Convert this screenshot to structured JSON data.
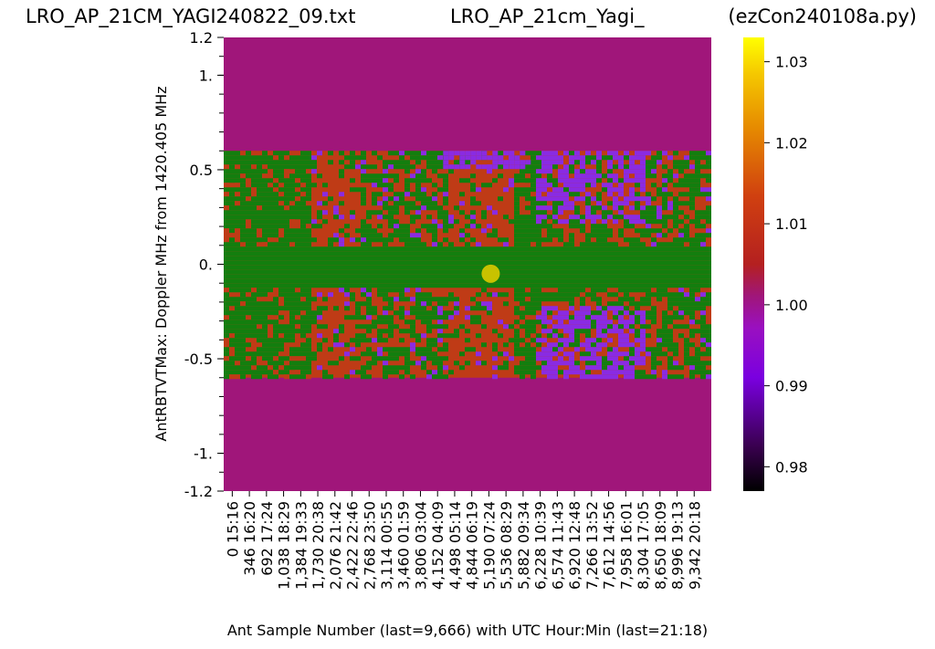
{
  "titles": {
    "left": "LRO_AP_21CM_YAGI240822_09.txt",
    "center": "LRO_AP_21cm_Yagi_",
    "right": "(ezCon240108a.py)"
  },
  "chart_data": {
    "type": "heatmap",
    "title": "LRO_AP_21cm_Yagi_",
    "xlabel": "Ant Sample Number (last=9,666) with UTC Hour:Min (last=21:18)",
    "ylabel": "AntRBTVTMax:  Doppler MHz from 1420.405 MHz",
    "ylim": [
      -1.2,
      1.2
    ],
    "y_ticks": [
      {
        "value": 1.2,
        "label": "1.2"
      },
      {
        "value": 1.0,
        "label": "1."
      },
      {
        "value": 0.5,
        "label": "0.5"
      },
      {
        "value": 0.0,
        "label": "0."
      },
      {
        "value": -0.5,
        "label": "-0.5"
      },
      {
        "value": -1.0,
        "label": "-1."
      },
      {
        "value": -1.2,
        "label": "-1.2"
      }
    ],
    "x_tick_labels": [
      "0  15:16",
      "346  16:20",
      "692  17:24",
      "1,038  18:29",
      "1,384  19:33",
      "1,730  20:38",
      "2,076  21:42",
      "2,422  22:46",
      "2,768  23:50",
      "3,114  00:55",
      "3,460  01:59",
      "3,806  03:04",
      "4,152  04:09",
      "4,498  05:14",
      "4,844  06:19",
      "5,190  07:24",
      "5,536  08:29",
      "5,882  09:34",
      "6,228  10:39",
      "6,574  11:43",
      "6,920  12:48",
      "7,266  13:52",
      "7,612  14:56",
      "7,958  16:01",
      "8,304  17:05",
      "8,650  18:09",
      "8,996  19:13",
      "9,342  20:18"
    ],
    "x_last_sample": 9666,
    "data_band_y_range": [
      -0.6,
      0.6
    ],
    "marker": {
      "sample": 5190,
      "doppler": -0.05,
      "color": "#c8c200"
    },
    "colorbar": {
      "colormap": "gnuplot-like",
      "range": [
        0.977,
        1.033
      ],
      "ticks": [
        {
          "value": 1.03,
          "label": "1.03"
        },
        {
          "value": 1.02,
          "label": "1.02"
        },
        {
          "value": 1.01,
          "label": "1.01"
        },
        {
          "value": 1.0,
          "label": "1.00"
        },
        {
          "value": 0.99,
          "label": "0.99"
        },
        {
          "value": 0.98,
          "label": "0.98"
        }
      ]
    },
    "colors": {
      "background": "#a0167a",
      "green": "#137e0e",
      "red": "#bf3b16",
      "violet": "#8a2be2",
      "marker": "#c8c200"
    }
  }
}
